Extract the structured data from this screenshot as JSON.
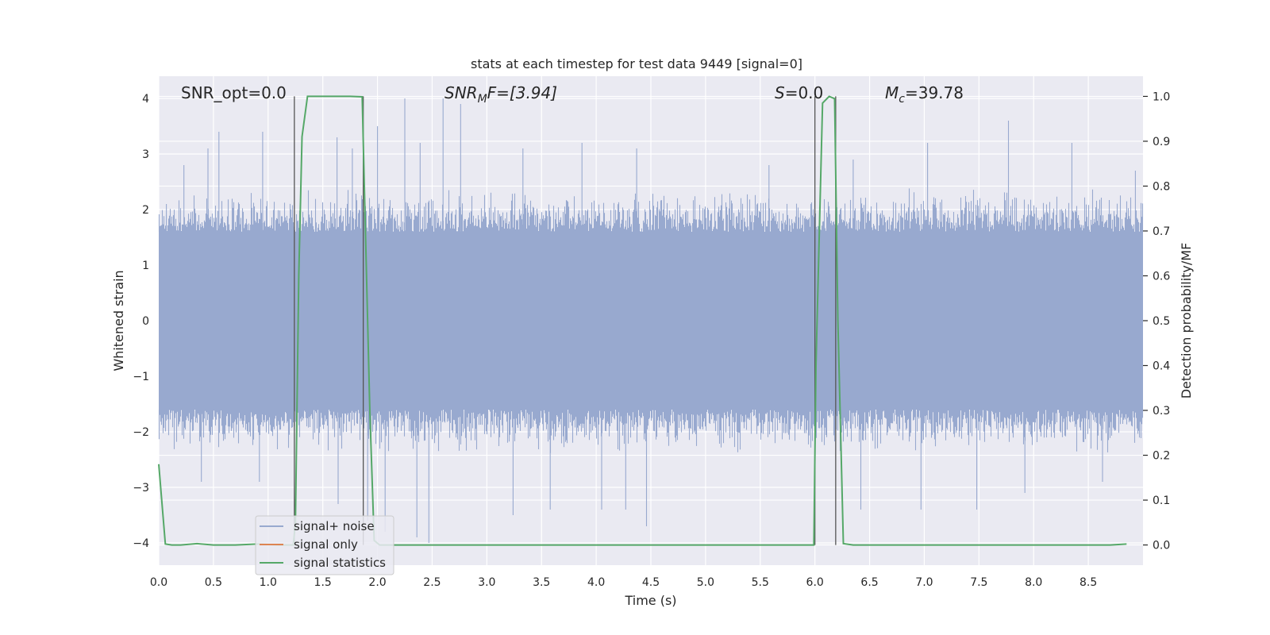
{
  "chart_data": {
    "type": "line",
    "title": "stats at each timestep for test data 9449 [signal=0]",
    "xlabel": "Time (s)",
    "ylabel": "Whitened strain",
    "y2label": "Detection probability/MF",
    "xlim": [
      0.0,
      9.0
    ],
    "ylim": [
      -4.4,
      4.4
    ],
    "y2lim": [
      -0.045,
      1.045
    ],
    "xticks": [
      "0.0",
      "0.5",
      "1.0",
      "1.5",
      "2.0",
      "2.5",
      "3.0",
      "3.5",
      "4.0",
      "4.5",
      "5.0",
      "5.5",
      "6.0",
      "6.5",
      "7.0",
      "7.5",
      "8.0",
      "8.5"
    ],
    "yticks": [
      "4",
      "3",
      "2",
      "1",
      "0",
      "−1",
      "−2",
      "−3",
      "−4"
    ],
    "y2ticks": [
      "1.0",
      "0.9",
      "0.8",
      "0.7",
      "0.6",
      "0.5",
      "0.4",
      "0.3",
      "0.2",
      "0.1",
      "0.0"
    ],
    "grid": true,
    "legend_position": "lower-left",
    "annotations": {
      "snr_opt": "SNR_opt=0.0",
      "snr_mf_base": "SNR",
      "snr_mf_sub": "M",
      "snr_mf_rest": "F=[3.94]",
      "s_label": "S",
      "s_value": "=0.0",
      "mc_base": "M",
      "mc_sub": "c",
      "mc_value": "=39.78"
    },
    "vertical_lines_x": [
      1.24,
      1.87,
      6.0,
      6.19
    ],
    "series": [
      {
        "name": "signal+ noise",
        "color": "#98a9cf",
        "axis": "left",
        "envelope": {
          "dense_core": 1.6,
          "typical_peak": 2.4,
          "peaks": [
            {
              "x": 0.07,
              "y": 2.1
            },
            {
              "x": 0.23,
              "y": 2.8
            },
            {
              "x": 0.45,
              "y": 3.1
            },
            {
              "x": 0.55,
              "y": 3.4
            },
            {
              "x": 0.95,
              "y": 3.4
            },
            {
              "x": 1.63,
              "y": 3.3
            },
            {
              "x": 1.77,
              "y": 3.1
            },
            {
              "x": 2.0,
              "y": 3.5
            },
            {
              "x": 2.25,
              "y": 4.0
            },
            {
              "x": 2.39,
              "y": 3.2
            },
            {
              "x": 2.6,
              "y": 4.0
            },
            {
              "x": 2.76,
              "y": 3.9
            },
            {
              "x": 3.33,
              "y": 3.1
            },
            {
              "x": 3.87,
              "y": 3.2
            },
            {
              "x": 4.37,
              "y": 3.1
            },
            {
              "x": 5.58,
              "y": 2.8
            },
            {
              "x": 6.35,
              "y": 2.9
            },
            {
              "x": 7.03,
              "y": 3.2
            },
            {
              "x": 7.77,
              "y": 3.6
            },
            {
              "x": 8.35,
              "y": 3.2
            },
            {
              "x": 8.93,
              "y": 2.7
            }
          ],
          "troughs": [
            {
              "x": 0.39,
              "y": -2.9
            },
            {
              "x": 0.92,
              "y": -2.9
            },
            {
              "x": 1.64,
              "y": -3.3
            },
            {
              "x": 1.91,
              "y": -3.6
            },
            {
              "x": 2.07,
              "y": -3.8
            },
            {
              "x": 2.36,
              "y": -3.9
            },
            {
              "x": 2.47,
              "y": -4.0
            },
            {
              "x": 3.24,
              "y": -3.5
            },
            {
              "x": 3.58,
              "y": -3.4
            },
            {
              "x": 4.05,
              "y": -3.4
            },
            {
              "x": 4.27,
              "y": -3.4
            },
            {
              "x": 4.46,
              "y": -3.7
            },
            {
              "x": 6.42,
              "y": -3.4
            },
            {
              "x": 6.97,
              "y": -3.4
            },
            {
              "x": 7.48,
              "y": -3.4
            },
            {
              "x": 7.92,
              "y": -3.1
            },
            {
              "x": 8.63,
              "y": -2.9
            }
          ]
        }
      },
      {
        "name": "signal only",
        "color": "#dd8452",
        "axis": "left",
        "x": [
          0.0,
          9.0
        ],
        "y": [
          0.0,
          0.0
        ]
      },
      {
        "name": "signal statistics",
        "color": "#55a868",
        "axis": "right",
        "x": [
          0.0,
          0.06,
          0.12,
          0.2,
          0.35,
          0.5,
          0.7,
          0.9,
          1.1,
          1.23,
          1.25,
          1.28,
          1.31,
          1.36,
          1.45,
          1.6,
          1.75,
          1.86,
          1.88,
          1.93,
          1.97,
          2.02,
          2.2,
          3.0,
          4.0,
          5.0,
          5.5,
          5.99,
          6.01,
          6.07,
          6.13,
          6.18,
          6.21,
          6.26,
          6.35,
          7.0,
          8.0,
          8.7,
          8.85
        ],
        "y": [
          0.18,
          0.002,
          0.0,
          0.0,
          0.003,
          0.0,
          0.0,
          0.002,
          0.0,
          0.0,
          0.05,
          0.6,
          0.91,
          1.0,
          1.0,
          1.0,
          1.0,
          0.999,
          0.8,
          0.3,
          0.01,
          0.0,
          0.0,
          0.0,
          0.0,
          0.0,
          0.0,
          0.0,
          0.4,
          0.985,
          1.0,
          0.995,
          0.5,
          0.003,
          0.0,
          0.0,
          0.0,
          0.0,
          0.002
        ]
      }
    ]
  }
}
